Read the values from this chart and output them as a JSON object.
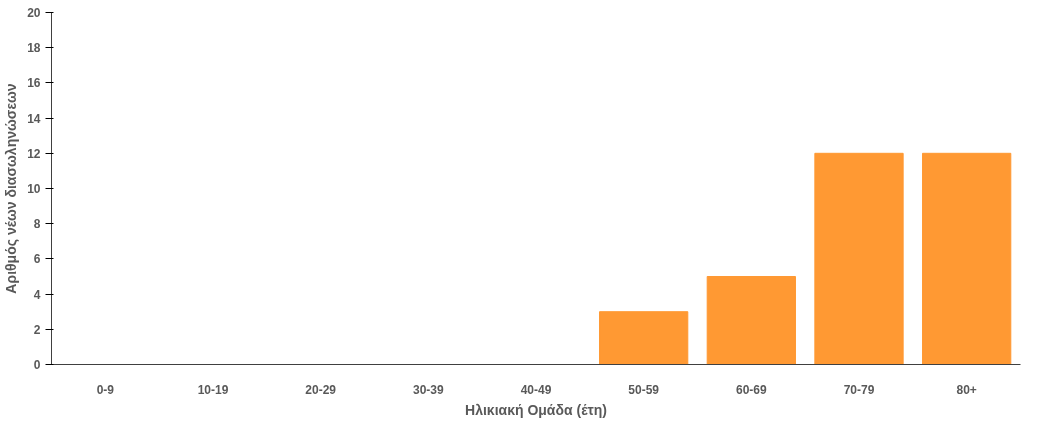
{
  "chart_data": {
    "type": "bar",
    "xlabel": "Ηλικιακή Ομάδα (έτη)",
    "ylabel": "Αριθμός νέων διασωληνώσεων",
    "categories": [
      "0-9",
      "10-19",
      "20-29",
      "30-39",
      "40-49",
      "50-59",
      "60-69",
      "70-79",
      "80+"
    ],
    "values": [
      0,
      0,
      0,
      0,
      0,
      3,
      5,
      12,
      12
    ],
    "color": "#ff9933",
    "ylim": [
      0,
      20
    ],
    "yticks": [
      0,
      2,
      4,
      6,
      8,
      10,
      12,
      14,
      16,
      18,
      20
    ],
    "grid": false
  }
}
